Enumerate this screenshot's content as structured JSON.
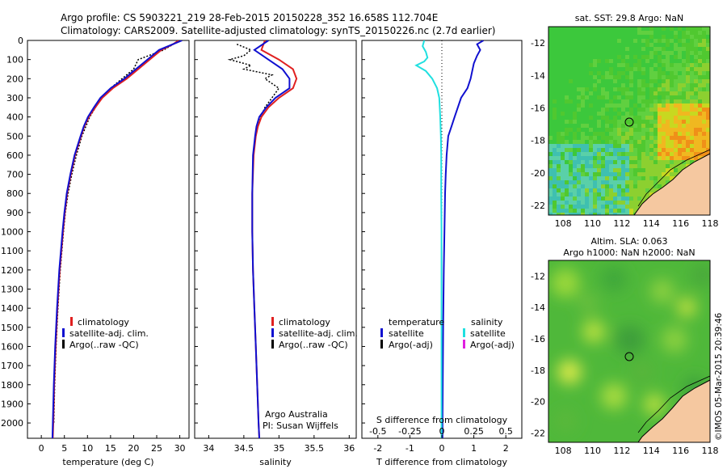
{
  "header": {
    "line1": "Argo profile: CS 5903221_219 28-Feb-2015 20150228_352 16.658S 112.704E",
    "line2": "Climatology: CARS2009. Satellite-adjusted climatology: synTS_20150226.nc (2.7d earlier)"
  },
  "colors": {
    "climatology": "#e02020",
    "satellite": "#1010d0",
    "argo": "#000000",
    "salinity_sat": "#20e0e0",
    "salinity_argo": "#e020e0",
    "land": "#f5c8a0"
  },
  "chart_data": [
    {
      "type": "line",
      "id": "temperature",
      "xlabel": "temperature (deg C)",
      "xticks": [
        "0",
        "5",
        "10",
        "15",
        "20",
        "25",
        "30"
      ],
      "yticks": [
        "0",
        "100",
        "200",
        "300",
        "400",
        "500",
        "600",
        "700",
        "800",
        "900",
        "1000",
        "1100",
        "1200",
        "1300",
        "1400",
        "1500",
        "1600",
        "1700",
        "1800",
        "1900",
        "2000"
      ],
      "xlim": [
        -3,
        32
      ],
      "ylim": [
        0,
        2080
      ],
      "legend": [
        "climatology",
        "satellite-adj. clim.",
        "Argo(..raw -QC)"
      ],
      "series": [
        {
          "name": "climatology",
          "depth": [
            0,
            20,
            50,
            80,
            120,
            160,
            200,
            250,
            300,
            350,
            400,
            450,
            500,
            600,
            700,
            800,
            900,
            1000,
            1200,
            1400,
            1600,
            1800,
            2000,
            2080
          ],
          "values": [
            29.8,
            28.5,
            26,
            24.5,
            22.5,
            20.5,
            18.5,
            15.5,
            13.2,
            11.7,
            10.3,
            9.3,
            8.6,
            7.3,
            6.4,
            5.6,
            5.1,
            4.7,
            4.0,
            3.5,
            3.1,
            2.8,
            2.6,
            2.5
          ]
        },
        {
          "name": "satellite-adj. clim.",
          "depth": [
            0,
            20,
            50,
            80,
            120,
            160,
            200,
            250,
            300,
            350,
            400,
            450,
            500,
            600,
            700,
            800,
            900,
            1000,
            1200,
            1400,
            1600,
            1800,
            2000,
            2080
          ],
          "values": [
            30.5,
            28.5,
            25.5,
            24,
            22,
            20,
            18,
            15,
            12.8,
            11.4,
            10.1,
            9.2,
            8.5,
            7.2,
            6.3,
            5.5,
            5.0,
            4.6,
            3.9,
            3.4,
            3.0,
            2.7,
            2.5,
            2.4
          ]
        },
        {
          "name": "Argo(..raw -QC)",
          "depth": [
            0,
            50,
            100,
            150,
            200,
            250,
            300,
            400,
            500,
            600,
            700,
            800,
            900,
            1000,
            1200,
            1400,
            1600,
            1800,
            2000
          ],
          "values": [
            30,
            26.5,
            21,
            20,
            17.5,
            15,
            13,
            10.5,
            8.8,
            7.6,
            6.6,
            5.8,
            5.2,
            4.8,
            4.1,
            3.6,
            3.2,
            2.9,
            2.7
          ]
        }
      ]
    },
    {
      "type": "line",
      "id": "salinity",
      "xlabel": "salinity",
      "xticks": [
        "34",
        "34.5",
        "35",
        "35.5",
        "36"
      ],
      "xlim": [
        33.8,
        36.1
      ],
      "ylim": [
        0,
        2080
      ],
      "legend": [
        "climatology",
        "satellite-adj. clim.",
        "Argo(..raw -QC)"
      ],
      "annotation": [
        "Argo Australia",
        "PI: Susan Wijffels"
      ],
      "series": [
        {
          "name": "climatology",
          "depth": [
            0,
            50,
            100,
            150,
            200,
            250,
            300,
            350,
            400,
            450,
            500,
            600,
            800,
            1000,
            1200,
            1400,
            1600,
            1800,
            2000,
            2080
          ],
          "values": [
            34.8,
            34.75,
            35.0,
            35.2,
            35.25,
            35.2,
            35.0,
            34.85,
            34.75,
            34.7,
            34.67,
            34.64,
            34.62,
            34.62,
            34.63,
            34.65,
            34.67,
            34.69,
            34.71,
            34.72
          ]
        },
        {
          "name": "satellite-adj. clim.",
          "depth": [
            0,
            50,
            100,
            150,
            200,
            250,
            300,
            350,
            400,
            450,
            500,
            600,
            800,
            1000,
            1200,
            1400,
            1600,
            1800,
            2000,
            2080
          ],
          "values": [
            34.85,
            34.65,
            34.85,
            35.05,
            35.15,
            35.15,
            34.95,
            34.82,
            34.72,
            34.68,
            34.66,
            34.63,
            34.62,
            34.62,
            34.63,
            34.65,
            34.67,
            34.69,
            34.71,
            34.72
          ]
        },
        {
          "name": "Argo(..raw -QC)",
          "depth": [
            20,
            50,
            80,
            100,
            130,
            150,
            180,
            200,
            250,
            300,
            350,
            400,
            450,
            500
          ],
          "values": [
            34.4,
            34.6,
            34.5,
            34.3,
            34.6,
            34.5,
            34.9,
            34.8,
            35.0,
            34.9,
            34.8,
            34.74,
            34.7,
            34.67
          ]
        }
      ]
    },
    {
      "type": "line",
      "id": "difference",
      "xlabel": "T difference from climatology",
      "xlabel_top": "S difference from climatology",
      "xticks": [
        "-2",
        "-1",
        "0",
        "1",
        "2"
      ],
      "xticks_top": [
        "-0.5",
        "-0.25",
        "0",
        "0.25",
        "0.5"
      ],
      "xlim": [
        -2.5,
        2.5
      ],
      "ylim": [
        0,
        2080
      ],
      "legend_t": {
        "title": "temperature",
        "items": [
          "satellite",
          "Argo(-adj)"
        ]
      },
      "legend_s": {
        "title": "salinity",
        "items": [
          "satellite",
          "Argo(-adj)"
        ]
      },
      "series": [
        {
          "name": "temperature satellite",
          "depth": [
            0,
            20,
            50,
            80,
            120,
            160,
            200,
            250,
            300,
            350,
            400,
            450,
            500,
            600,
            700,
            800,
            1000,
            1200,
            1500,
            2000,
            2080
          ],
          "values": [
            1.3,
            1.1,
            1.2,
            1.1,
            1.0,
            0.95,
            0.9,
            0.8,
            0.6,
            0.5,
            0.4,
            0.3,
            0.2,
            0.15,
            0.12,
            0.1,
            0.08,
            0.06,
            0.04,
            0.02,
            0.02
          ]
        },
        {
          "name": "salinity satellite",
          "depth": [
            0,
            30,
            60,
            90,
            110,
            130,
            160,
            200,
            250,
            300,
            400,
            500,
            600,
            800,
            1000,
            1500,
            2000,
            2080
          ],
          "values": [
            -0.55,
            -0.6,
            -0.5,
            -0.45,
            -0.55,
            -0.8,
            -0.5,
            -0.3,
            -0.15,
            -0.08,
            -0.05,
            -0.03,
            -0.02,
            -0.02,
            -0.01,
            -0.01,
            -0.01,
            -0.01
          ]
        }
      ]
    },
    {
      "type": "heatmap",
      "id": "sst_map",
      "title": "sat. SST: 29.8 Argo: NaN",
      "xticks": [
        "108",
        "110",
        "112",
        "114",
        "116",
        "118"
      ],
      "yticks": [
        "-12",
        "-14",
        "-16",
        "-18",
        "-20",
        "-22"
      ],
      "xlim": [
        107,
        118
      ],
      "ylim": [
        -22.6,
        -11
      ]
    },
    {
      "type": "heatmap",
      "id": "sla_map",
      "title_line1": "Altim. SLA: 0.063",
      "title_line2": "Argo h1000: NaN h2000: NaN",
      "xticks": [
        "108",
        "110",
        "112",
        "114",
        "116",
        "118"
      ],
      "yticks": [
        "-12",
        "-14",
        "-16",
        "-18",
        "-20",
        "-22"
      ],
      "xlim": [
        107,
        118
      ],
      "ylim": [
        -22.6,
        -11
      ]
    }
  ],
  "footer": {
    "imos_stamp": "©IMOS 05-Mar-2015 20:39:46"
  }
}
